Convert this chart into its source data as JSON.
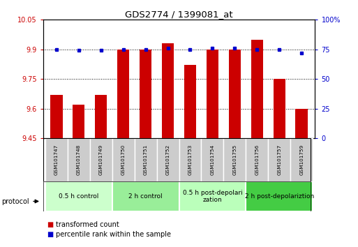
{
  "title": "GDS2774 / 1399081_at",
  "samples": [
    "GSM101747",
    "GSM101748",
    "GSM101749",
    "GSM101750",
    "GSM101751",
    "GSM101752",
    "GSM101753",
    "GSM101754",
    "GSM101755",
    "GSM101756",
    "GSM101757",
    "GSM101759"
  ],
  "red_values": [
    9.67,
    9.62,
    9.67,
    9.9,
    9.9,
    9.93,
    9.82,
    9.9,
    9.9,
    9.95,
    9.75,
    9.6
  ],
  "blue_values": [
    75,
    74,
    74,
    75,
    75,
    76,
    75,
    76,
    76,
    75,
    75,
    72
  ],
  "ylim_left": [
    9.45,
    10.05
  ],
  "ylim_right": [
    0,
    100
  ],
  "yticks_left": [
    9.45,
    9.6,
    9.75,
    9.9,
    10.05
  ],
  "yticks_right": [
    0,
    25,
    50,
    75,
    100
  ],
  "ytick_labels_right": [
    "0",
    "25",
    "50",
    "75",
    "100%"
  ],
  "bar_color": "#cc0000",
  "dot_color": "#0000cc",
  "bar_width": 0.55,
  "groups": [
    {
      "label": "0.5 h control",
      "start": 0,
      "end": 3,
      "color": "#ccffcc"
    },
    {
      "label": "2 h control",
      "start": 3,
      "end": 6,
      "color": "#99ee99"
    },
    {
      "label": "0.5 h post-depolarization",
      "start": 6,
      "end": 9,
      "color": "#bbffbb"
    },
    {
      "label": "2 h post-depolariztion",
      "start": 9,
      "end": 12,
      "color": "#44cc44"
    }
  ],
  "group_label_multiline": [
    "0.5 h control",
    "2 h control",
    "0.5 h post-depolarization\nzation",
    "2 h post-depolariztion"
  ],
  "legend_red": "transformed count",
  "legend_blue": "percentile rank within the sample",
  "protocol_label": "protocol",
  "background_color": "#ffffff",
  "plot_bg_color": "#ffffff",
  "tick_color_left": "#cc0000",
  "tick_color_right": "#0000cc",
  "grid_color": "#000000",
  "sample_box_color": "#cccccc",
  "sample_box_edge": "#aaaaaa"
}
